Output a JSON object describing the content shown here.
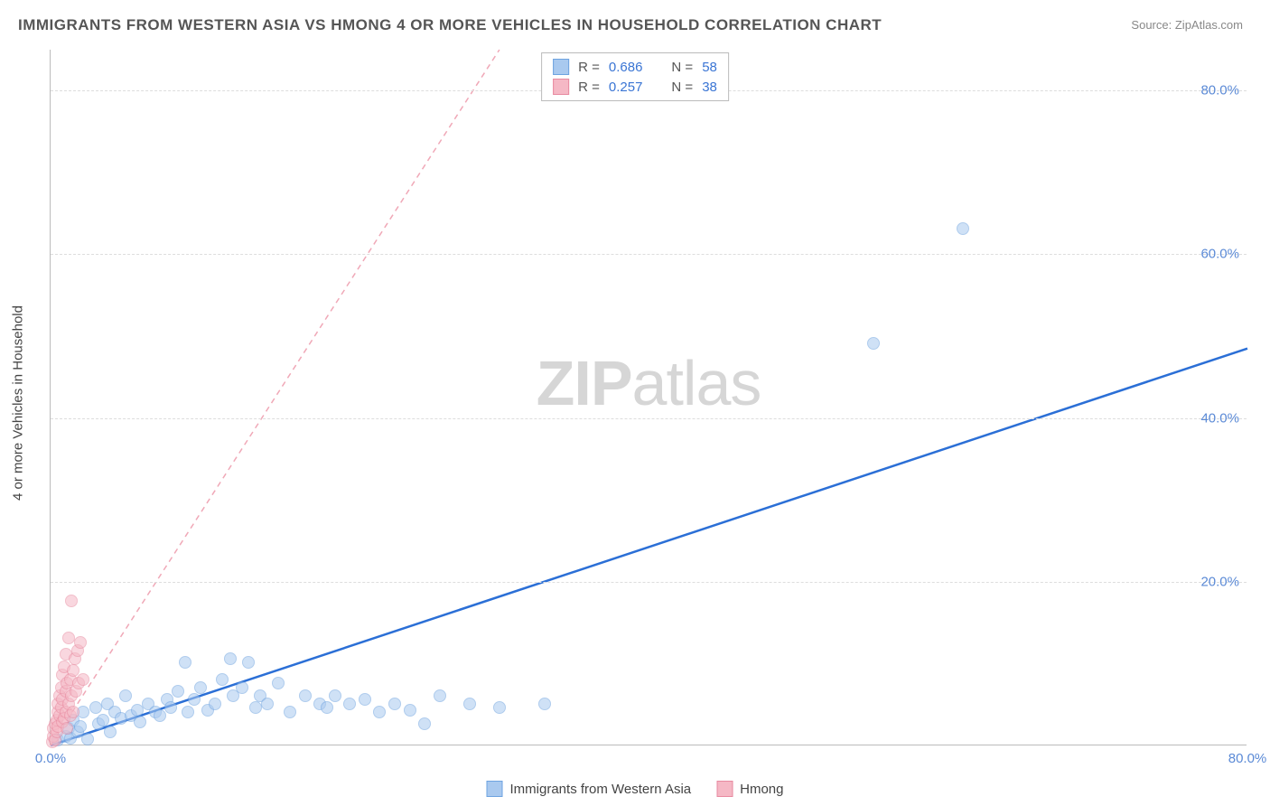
{
  "title": "IMMIGRANTS FROM WESTERN ASIA VS HMONG 4 OR MORE VEHICLES IN HOUSEHOLD CORRELATION CHART",
  "source_label": "Source:",
  "source_name": "ZipAtlas.com",
  "watermark_prefix": "ZIP",
  "watermark_suffix": "atlas",
  "ylabel": "4 or more Vehicles in Household",
  "chart": {
    "type": "scatter",
    "xlim": [
      0,
      80
    ],
    "ylim": [
      0,
      85
    ],
    "xtick_positions": [
      0,
      80
    ],
    "xtick_labels": [
      "0.0%",
      "80.0%"
    ],
    "ytick_positions": [
      20,
      40,
      60,
      80
    ],
    "ytick_labels": [
      "20.0%",
      "40.0%",
      "60.0%",
      "80.0%"
    ],
    "grid_color": "#dddddd",
    "axis_color": "#bbbbbb",
    "background_color": "#ffffff",
    "axis_label_color": "#5b8ad6",
    "point_radius": 7,
    "series": [
      {
        "name": "Immigrants from Western Asia",
        "color_fill": "#a9c9ef",
        "color_stroke": "#6ea3e0",
        "fill_opacity": 0.55,
        "R": 0.686,
        "N": 58,
        "trend": {
          "x1": 0,
          "y1": 0,
          "x2": 80,
          "y2": 48.5,
          "color": "#2b6fd6",
          "width": 2.5,
          "dash": "none"
        },
        "points": [
          [
            0.5,
            0.5
          ],
          [
            1,
            1
          ],
          [
            1.2,
            2
          ],
          [
            1.3,
            0.8
          ],
          [
            1.5,
            3
          ],
          [
            1.8,
            1.5
          ],
          [
            2,
            2.2
          ],
          [
            2.2,
            4
          ],
          [
            2.5,
            0.7
          ],
          [
            3,
            4.5
          ],
          [
            3.2,
            2.5
          ],
          [
            3.5,
            3
          ],
          [
            3.8,
            5
          ],
          [
            4,
            1.5
          ],
          [
            4.3,
            4
          ],
          [
            4.7,
            3.2
          ],
          [
            5,
            6
          ],
          [
            5.4,
            3.5
          ],
          [
            5.8,
            4.2
          ],
          [
            6,
            2.8
          ],
          [
            6.5,
            5
          ],
          [
            7,
            4
          ],
          [
            7.3,
            3.5
          ],
          [
            7.8,
            5.5
          ],
          [
            8,
            4.5
          ],
          [
            8.5,
            6.5
          ],
          [
            9,
            10
          ],
          [
            9.2,
            4
          ],
          [
            9.6,
            5.5
          ],
          [
            10,
            7
          ],
          [
            10.5,
            4.2
          ],
          [
            11,
            5
          ],
          [
            11.5,
            8
          ],
          [
            12,
            10.5
          ],
          [
            12.2,
            6
          ],
          [
            12.8,
            7
          ],
          [
            13.2,
            10
          ],
          [
            13.7,
            4.5
          ],
          [
            14,
            6
          ],
          [
            14.5,
            5
          ],
          [
            15.2,
            7.5
          ],
          [
            16,
            4
          ],
          [
            17,
            6
          ],
          [
            18,
            5
          ],
          [
            18.5,
            4.5
          ],
          [
            19,
            6
          ],
          [
            20,
            5
          ],
          [
            21,
            5.5
          ],
          [
            22,
            4
          ],
          [
            23,
            5
          ],
          [
            24,
            4.2
          ],
          [
            25,
            2.5
          ],
          [
            26,
            6
          ],
          [
            28,
            5
          ],
          [
            30,
            4.5
          ],
          [
            33,
            5
          ],
          [
            55,
            49
          ],
          [
            61,
            63
          ]
        ]
      },
      {
        "name": "Hmong",
        "color_fill": "#f5b8c5",
        "color_stroke": "#e88aa0",
        "fill_opacity": 0.55,
        "R": 0.257,
        "N": 38,
        "trend": {
          "x1": 0,
          "y1": 0,
          "x2": 30,
          "y2": 85,
          "color": "#f0a8b7",
          "width": 1.5,
          "dash": "6 5"
        },
        "points": [
          [
            0.1,
            0.3
          ],
          [
            0.2,
            1
          ],
          [
            0.2,
            2
          ],
          [
            0.3,
            2.5
          ],
          [
            0.3,
            0.5
          ],
          [
            0.4,
            3
          ],
          [
            0.4,
            1.5
          ],
          [
            0.5,
            4
          ],
          [
            0.5,
            5
          ],
          [
            0.5,
            2.2
          ],
          [
            0.6,
            6
          ],
          [
            0.6,
            3.5
          ],
          [
            0.7,
            7
          ],
          [
            0.7,
            4.5
          ],
          [
            0.8,
            8.5
          ],
          [
            0.8,
            2.8
          ],
          [
            0.8,
            5.5
          ],
          [
            0.9,
            9.5
          ],
          [
            0.9,
            3.2
          ],
          [
            1.0,
            11
          ],
          [
            1.0,
            4.0
          ],
          [
            1.0,
            6.5
          ],
          [
            1.1,
            7.5
          ],
          [
            1.1,
            2.0
          ],
          [
            1.2,
            13
          ],
          [
            1.2,
            5.0
          ],
          [
            1.3,
            8.0
          ],
          [
            1.3,
            3.5
          ],
          [
            1.4,
            17.5
          ],
          [
            1.4,
            6.0
          ],
          [
            1.5,
            9.0
          ],
          [
            1.5,
            4.0
          ],
          [
            1.6,
            10.5
          ],
          [
            1.7,
            6.5
          ],
          [
            1.8,
            11.5
          ],
          [
            1.9,
            7.5
          ],
          [
            2.0,
            12.5
          ],
          [
            2.2,
            8.0
          ]
        ]
      }
    ]
  },
  "legend_top": {
    "r_label": "R =",
    "n_label": "N ="
  },
  "legend_bottom": {
    "items": [
      "Immigrants from Western Asia",
      "Hmong"
    ]
  }
}
